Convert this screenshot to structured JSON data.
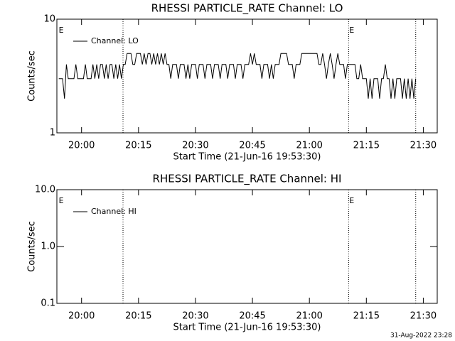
{
  "chart_data": [
    {
      "type": "line",
      "title": "RHESSI PARTICLE_RATE Channel: LO",
      "xlabel": "Start Time (21-Jun-16 19:53:30)",
      "ylabel": "Counts/sec",
      "log_y": true,
      "legend": "upper left",
      "xlim": [
        "19:53:30",
        "21:33:40"
      ],
      "xticks": [
        "20:00",
        "20:15",
        "20:30",
        "20:45",
        "21:00",
        "21:15",
        "21:30"
      ],
      "ylim": [
        1,
        10
      ],
      "yticks": [
        1,
        10
      ],
      "vlines": [
        "20:10:55",
        "21:10:20",
        "21:28:00"
      ],
      "annotations": [
        {
          "x": "19:54:00",
          "text": "E"
        },
        {
          "x": "21:10:30",
          "text": "E"
        }
      ],
      "x": [
        "19:54:00",
        "19:55:00",
        "19:55:30",
        "19:56:00",
        "19:56:30",
        "19:58:00",
        "19:58:30",
        "19:59:00",
        "20:00:30",
        "20:01:00",
        "20:01:30",
        "20:02:30",
        "20:03:00",
        "20:03:30",
        "20:04:00",
        "20:04:30",
        "20:05:00",
        "20:05:30",
        "20:06:00",
        "20:06:30",
        "20:07:00",
        "20:07:30",
        "20:08:00",
        "20:08:30",
        "20:09:00",
        "20:09:30",
        "20:10:00",
        "20:10:30",
        "20:11:00",
        "20:11:30",
        "20:12:00",
        "20:13:00",
        "20:13:30",
        "20:14:00",
        "20:14:30",
        "20:15:30",
        "20:16:00",
        "20:16:30",
        "20:17:00",
        "20:17:30",
        "20:18:00",
        "20:18:30",
        "20:19:00",
        "20:19:30",
        "20:20:00",
        "20:20:30",
        "20:21:00",
        "20:21:30",
        "20:22:00",
        "20:22:30",
        "20:23:00",
        "20:23:30",
        "20:24:00",
        "20:25:00",
        "20:25:30",
        "20:26:00",
        "20:27:00",
        "20:27:30",
        "20:28:00",
        "20:28:30",
        "20:29:00",
        "20:30:00",
        "20:30:30",
        "20:31:00",
        "20:32:00",
        "20:32:30",
        "20:33:00",
        "20:34:00",
        "20:34:30",
        "20:35:00",
        "20:36:00",
        "20:36:30",
        "20:37:00",
        "20:38:00",
        "20:38:30",
        "20:39:00",
        "20:40:00",
        "20:40:30",
        "20:41:00",
        "20:42:00",
        "20:42:30",
        "20:43:00",
        "20:44:00",
        "20:44:30",
        "20:45:00",
        "20:45:30",
        "20:46:00",
        "20:47:00",
        "20:47:30",
        "20:48:00",
        "20:49:00",
        "20:49:30",
        "20:50:00",
        "20:50:30",
        "20:51:00",
        "20:52:00",
        "20:52:30",
        "20:54:00",
        "20:54:30",
        "20:55:30",
        "20:56:00",
        "20:56:30",
        "20:57:30",
        "20:58:00",
        "21:02:00",
        "21:02:30",
        "21:03:00",
        "21:03:30",
        "21:04:00",
        "21:04:30",
        "21:05:00",
        "21:05:30",
        "21:06:00",
        "21:06:30",
        "21:07:00",
        "21:07:30",
        "21:08:00",
        "21:09:00",
        "21:09:30",
        "21:10:00",
        "21:11:00",
        "21:12:00",
        "21:12:30",
        "21:13:00",
        "21:13:30",
        "21:14:00",
        "21:15:00",
        "21:15:30",
        "21:16:00",
        "21:16:30",
        "21:17:00",
        "21:18:00",
        "21:18:30",
        "21:19:00",
        "21:19:30",
        "21:20:00",
        "21:20:30",
        "21:21:00",
        "21:21:30",
        "21:22:00",
        "21:22:30",
        "21:23:00",
        "21:24:00",
        "21:24:30",
        "21:25:00",
        "21:25:30",
        "21:26:00",
        "21:26:30",
        "21:27:00",
        "21:27:30",
        "21:28:00"
      ],
      "series": [
        {
          "name": "Channel: LO",
          "color": "#000000",
          "values": [
            3,
            3,
            2,
            4,
            3,
            3,
            4,
            3,
            3,
            4,
            3,
            3,
            4,
            3,
            4,
            3,
            4,
            4,
            3,
            4,
            3,
            4,
            4,
            3,
            4,
            3,
            4,
            3,
            4,
            4,
            5,
            5,
            4,
            4,
            5,
            5,
            4,
            5,
            4,
            5,
            5,
            4,
            5,
            4,
            5,
            4,
            5,
            4,
            5,
            4,
            4,
            3,
            4,
            4,
            3,
            4,
            4,
            3,
            4,
            3,
            4,
            4,
            3,
            4,
            4,
            3,
            4,
            4,
            3,
            4,
            4,
            3,
            4,
            4,
            3,
            4,
            4,
            3,
            4,
            4,
            3,
            4,
            4,
            5,
            4,
            5,
            4,
            4,
            3,
            4,
            4,
            3,
            4,
            3,
            4,
            4,
            5,
            5,
            4,
            4,
            3,
            4,
            4,
            5,
            5,
            4,
            4,
            5,
            4,
            3,
            4,
            5,
            4,
            3,
            4,
            5,
            4,
            4,
            3,
            4,
            4,
            4,
            3,
            3,
            4,
            3,
            3,
            2,
            3,
            2,
            3,
            3,
            2,
            3,
            3,
            4,
            3,
            3,
            2,
            3,
            2,
            3,
            3,
            2,
            3,
            2,
            3,
            2,
            3,
            2,
            3
          ]
        }
      ]
    },
    {
      "type": "line",
      "title": "RHESSI PARTICLE_RATE Channel: HI",
      "xlabel": "Start Time (21-Jun-16 19:53:30)",
      "ylabel": "Counts/sec",
      "log_y": true,
      "legend": "upper left",
      "xlim": [
        "19:53:30",
        "21:33:40"
      ],
      "xticks": [
        "20:00",
        "20:15",
        "20:30",
        "20:45",
        "21:00",
        "21:15",
        "21:30"
      ],
      "ylim": [
        0.1,
        10
      ],
      "yticks": [
        {
          "value": 0.1,
          "label": "0.1"
        },
        {
          "value": 1,
          "label": "1.0"
        },
        {
          "value": 10,
          "label": "10.0"
        }
      ],
      "vlines": [
        "20:10:55",
        "21:10:20",
        "21:28:00"
      ],
      "annotations": [
        {
          "x": "19:54:00",
          "text": "E"
        },
        {
          "x": "21:10:30",
          "text": "E"
        }
      ],
      "x": [],
      "series": [
        {
          "name": "Channel: HI",
          "color": "#000000",
          "values": []
        }
      ]
    }
  ],
  "footer": "31-Aug-2022 23:28"
}
